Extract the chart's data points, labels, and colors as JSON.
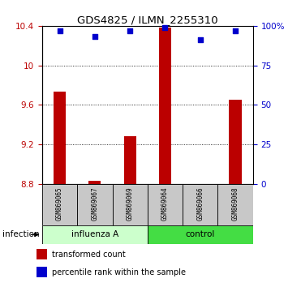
{
  "title": "GDS4825 / ILMN_2255310",
  "samples": [
    "GSM869065",
    "GSM869067",
    "GSM869069",
    "GSM869064",
    "GSM869066",
    "GSM869068"
  ],
  "bar_values": [
    9.73,
    8.83,
    9.28,
    10.38,
    8.8,
    9.65
  ],
  "percentile_values": [
    97,
    93,
    97,
    99,
    91,
    97
  ],
  "bar_color": "#BB0000",
  "dot_color": "#0000CC",
  "ymin": 8.8,
  "ymax": 10.4,
  "yticks": [
    8.8,
    9.2,
    9.6,
    10.0,
    10.4
  ],
  "ytick_labels": [
    "8.8",
    "9.2",
    "9.6",
    "10",
    "10.4"
  ],
  "y2min": 0,
  "y2max": 100,
  "y2ticks": [
    0,
    25,
    50,
    75,
    100
  ],
  "y2tick_labels": [
    "0",
    "25",
    "50",
    "75",
    "100%"
  ],
  "infection_label": "infection",
  "group1_label": "influenza A",
  "group2_label": "control",
  "group1_color": "#CCFFCC",
  "group2_color": "#44DD44",
  "sample_box_color": "#C8C8C8",
  "legend_bar": "transformed count",
  "legend_dot": "percentile rank within the sample",
  "bar_width": 0.35
}
